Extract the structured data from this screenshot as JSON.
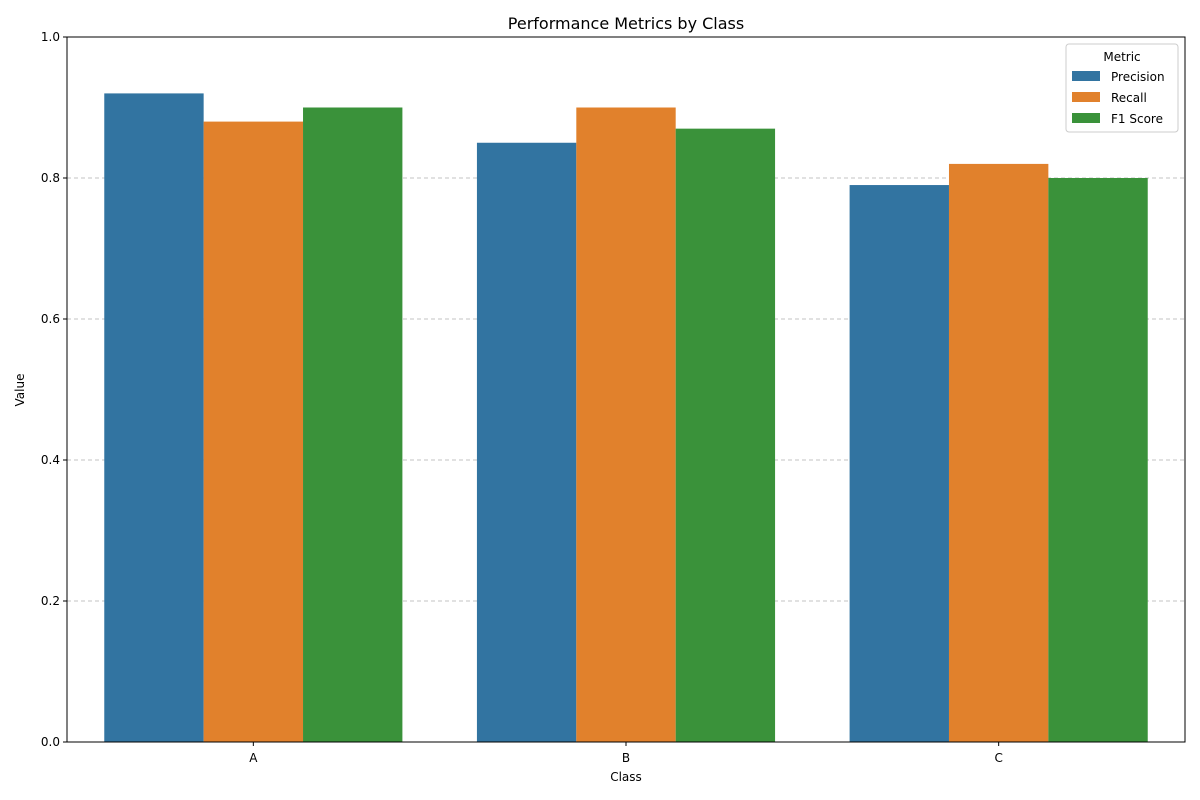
{
  "chart_data": {
    "type": "bar",
    "title": "Performance Metrics by Class",
    "xlabel": "Class",
    "ylabel": "Value",
    "categories": [
      "A",
      "B",
      "C"
    ],
    "ylim": [
      0,
      1.0
    ],
    "yticks": [
      "0.0",
      "0.2",
      "0.4",
      "0.6",
      "0.8",
      "1.0"
    ],
    "grid": "y-dashed",
    "legend": {
      "title": "Metric",
      "placement": "top-right"
    },
    "series": [
      {
        "name": "Precision",
        "color": "#3274a1",
        "values": [
          0.92,
          0.85,
          0.79
        ]
      },
      {
        "name": "Recall",
        "color": "#e1812c",
        "values": [
          0.88,
          0.9,
          0.82
        ]
      },
      {
        "name": "F1 Score",
        "color": "#3a923a",
        "values": [
          0.9,
          0.87,
          0.8
        ]
      }
    ]
  }
}
